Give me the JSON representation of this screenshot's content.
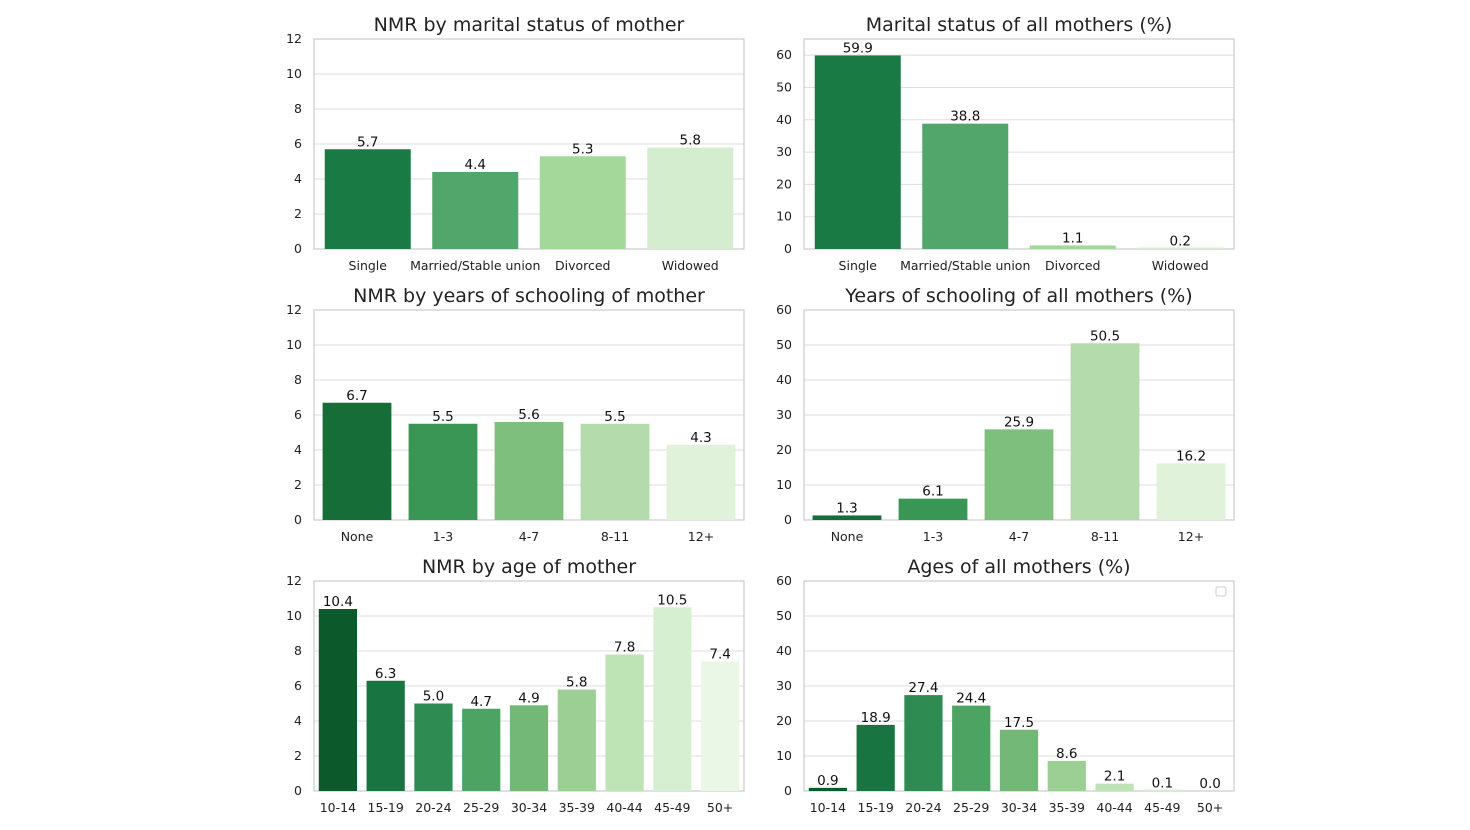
{
  "colors": {
    "panel_border": "#cccccc",
    "grid": "#dddddd",
    "palette4": [
      "#1a7a43",
      "#52a56b",
      "#a4d79a",
      "#d5edcf"
    ],
    "palette5": [
      "#166d38",
      "#3a9655",
      "#7fbf7e",
      "#b3dbab",
      "#e0f2da"
    ],
    "palette9": [
      "#0c5a2b",
      "#187440",
      "#2e8b51",
      "#4ca362",
      "#74b877",
      "#9ccf93",
      "#bee3b5",
      "#d7efd1",
      "#eaf6e6"
    ]
  },
  "chart_data": [
    {
      "id": "nmr-marital",
      "type": "bar",
      "title": "NMR by marital status of mother",
      "categories": [
        "Single",
        "Married/Stable union",
        "Divorced",
        "Widowed"
      ],
      "values": [
        5.7,
        4.4,
        5.3,
        5.8
      ],
      "labels": [
        "5.7",
        "4.4",
        "5.3",
        "5.8"
      ],
      "yticks": [
        "0",
        "2",
        "4",
        "6",
        "8",
        "10",
        "12"
      ],
      "ylim": [
        0,
        12
      ],
      "grid": true,
      "palette": "palette4"
    },
    {
      "id": "marital-pct",
      "type": "bar",
      "title": "Marital status of all mothers (%)",
      "categories": [
        "Single",
        "Married/Stable union",
        "Divorced",
        "Widowed"
      ],
      "values": [
        59.9,
        38.8,
        1.1,
        0.2
      ],
      "labels": [
        "59.9",
        "38.8",
        "1.1",
        "0.2"
      ],
      "yticks": [
        "0",
        "10",
        "20",
        "30",
        "40",
        "50",
        "60"
      ],
      "ylim": [
        0,
        65
      ],
      "grid": true,
      "palette": "palette4"
    },
    {
      "id": "nmr-schooling",
      "type": "bar",
      "title": "NMR by years of schooling of mother",
      "categories": [
        "None",
        "1-3",
        "4-7",
        "8-11",
        "12+"
      ],
      "values": [
        6.7,
        5.5,
        5.6,
        5.5,
        4.3
      ],
      "labels": [
        "6.7",
        "5.5",
        "5.6",
        "5.5",
        "4.3"
      ],
      "yticks": [
        "0",
        "2",
        "4",
        "6",
        "8",
        "10",
        "12"
      ],
      "ylim": [
        0,
        12
      ],
      "grid": true,
      "palette": "palette5"
    },
    {
      "id": "schooling-pct",
      "type": "bar",
      "title": "Years of schooling of all mothers (%)",
      "categories": [
        "None",
        "1-3",
        "4-7",
        "8-11",
        "12+"
      ],
      "values": [
        1.3,
        6.1,
        25.9,
        50.5,
        16.2
      ],
      "labels": [
        "1.3",
        "6.1",
        "25.9",
        "50.5",
        "16.2"
      ],
      "yticks": [
        "0",
        "10",
        "20",
        "30",
        "40",
        "50",
        "60"
      ],
      "ylim": [
        0,
        60
      ],
      "grid": true,
      "palette": "palette5"
    },
    {
      "id": "nmr-age",
      "type": "bar",
      "title": "NMR by age of mother",
      "categories": [
        "10-14",
        "15-19",
        "20-24",
        "25-29",
        "30-34",
        "35-39",
        "40-44",
        "45-49",
        "50+"
      ],
      "values": [
        10.4,
        6.3,
        5.0,
        4.7,
        4.9,
        5.8,
        7.8,
        10.5,
        7.4
      ],
      "labels": [
        "10.4",
        "6.3",
        "5.0",
        "4.7",
        "4.9",
        "5.8",
        "7.8",
        "10.5",
        "7.4"
      ],
      "yticks": [
        "0",
        "2",
        "4",
        "6",
        "8",
        "10",
        "12"
      ],
      "ylim": [
        0,
        12
      ],
      "grid": true,
      "palette": "palette9"
    },
    {
      "id": "age-pct",
      "type": "bar",
      "title": "Ages of all mothers (%)",
      "categories": [
        "10-14",
        "15-19",
        "20-24",
        "25-29",
        "30-34",
        "35-39",
        "40-44",
        "45-49",
        "50+"
      ],
      "values": [
        0.9,
        18.9,
        27.4,
        24.4,
        17.5,
        8.6,
        2.1,
        0.1,
        0.0
      ],
      "labels": [
        "0.9",
        "18.9",
        "27.4",
        "24.4",
        "17.5",
        "8.6",
        "2.1",
        "0.1",
        "0.0"
      ],
      "yticks": [
        "0",
        "10",
        "20",
        "30",
        "40",
        "50",
        "60"
      ],
      "ylim": [
        0,
        60
      ],
      "grid": true,
      "legend": "top-right (empty)",
      "palette": "palette9"
    }
  ]
}
